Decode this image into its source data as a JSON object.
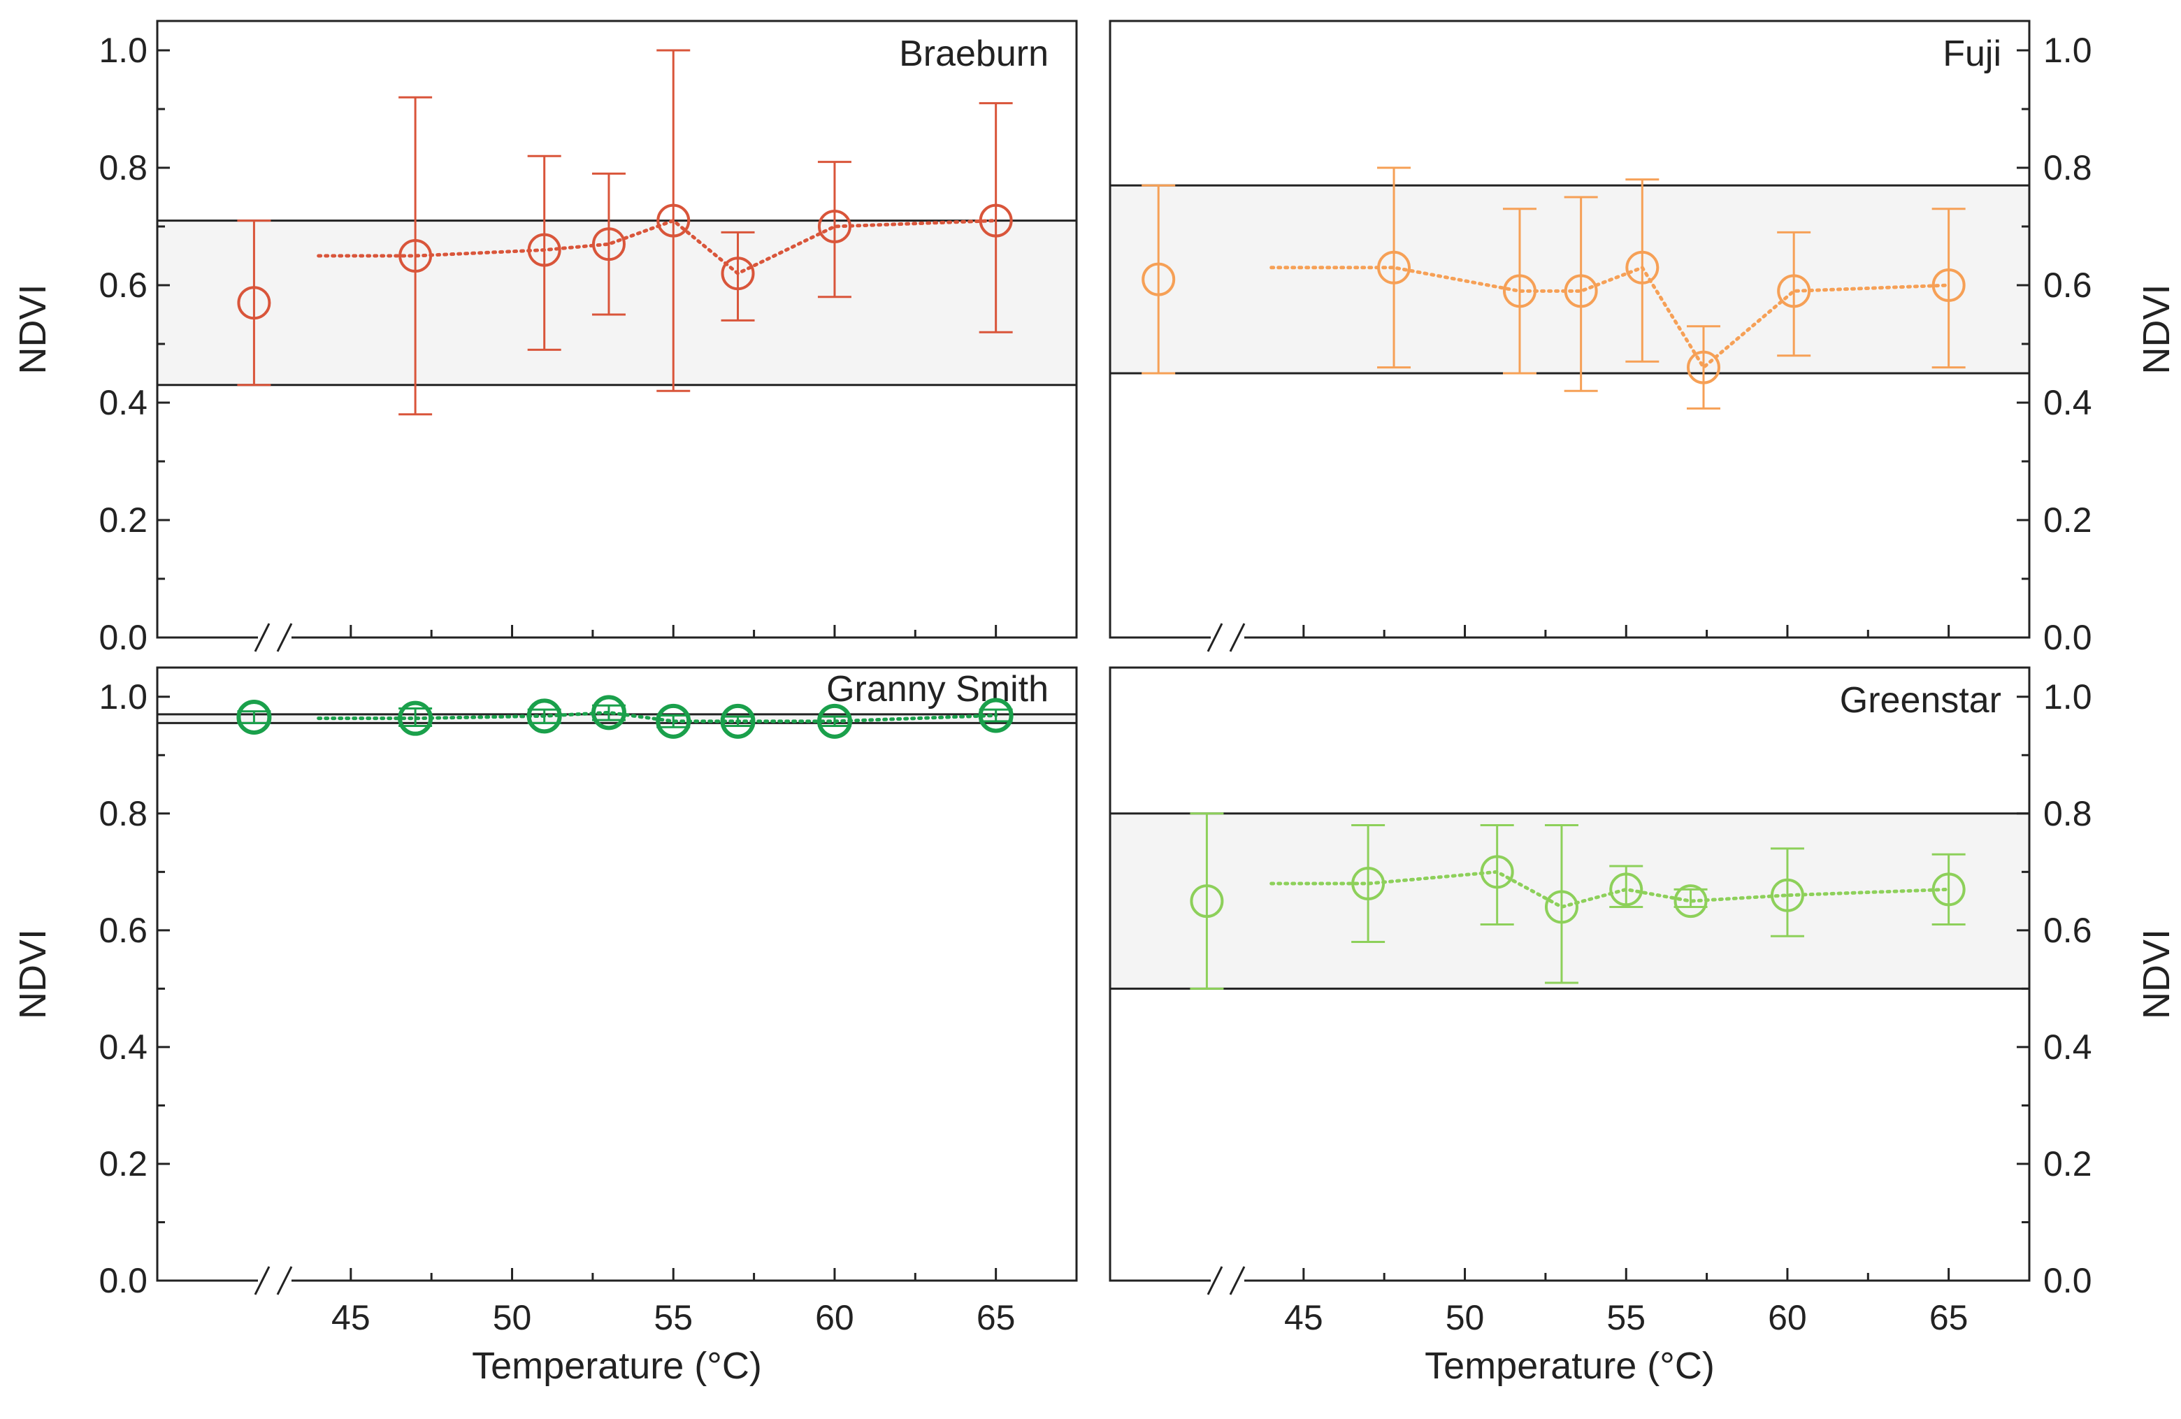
{
  "figure": {
    "shared_xlabel": "Temperature (°C)",
    "ylabel": "NDVI"
  },
  "chart_data": [
    {
      "type": "scatter",
      "title": "Braeburn",
      "xlabel": "",
      "ylabel": "NDVI",
      "xlim": [
        39,
        67.5
      ],
      "ylim": [
        0,
        1.05
      ],
      "xticks": [
        45,
        50,
        55,
        60,
        65
      ],
      "yticks": [
        0.0,
        0.2,
        0.4,
        0.6,
        0.8,
        1.0
      ],
      "ytick_labels": [
        "0.0",
        "0.2",
        "0.4",
        "0.6",
        "0.8",
        "1.0"
      ],
      "yaxis_side": "left",
      "show_xtick_labels": false,
      "axis_break": "//",
      "color": "#D9553A",
      "reference_band": [
        0.43,
        0.71
      ],
      "control_point": {
        "x": 42,
        "y": 0.57,
        "err_low": 0.43,
        "err_high": 0.71
      },
      "series": [
        {
          "name": "Braeburn",
          "x": [
            47,
            51,
            53,
            55,
            57,
            60,
            65
          ],
          "y": [
            0.65,
            0.66,
            0.67,
            0.71,
            0.62,
            0.7,
            0.71
          ],
          "err_low": [
            0.38,
            0.49,
            0.55,
            0.42,
            0.54,
            0.58,
            0.52
          ],
          "err_high": [
            0.92,
            0.82,
            0.79,
            1.0,
            0.69,
            0.81,
            0.91
          ]
        }
      ]
    },
    {
      "type": "scatter",
      "title": "Fuji",
      "xlabel": "",
      "ylabel": "NDVI",
      "xlim": [
        39,
        67.5
      ],
      "ylim": [
        0,
        1.05
      ],
      "xticks": [
        45,
        50,
        55,
        60,
        65
      ],
      "yticks": [
        0.0,
        0.2,
        0.4,
        0.6,
        0.8,
        1.0
      ],
      "ytick_labels": [
        "0.0",
        "0.2",
        "0.4",
        "0.6",
        "0.8",
        "1.0"
      ],
      "yaxis_side": "right",
      "show_xtick_labels": false,
      "axis_break": "//",
      "color": "#F6A056",
      "reference_band": [
        0.45,
        0.77
      ],
      "control_point": {
        "x": 40.5,
        "y": 0.61,
        "err_low": 0.45,
        "err_high": 0.77
      },
      "series": [
        {
          "name": "Fuji",
          "x": [
            47.8,
            51.7,
            53.6,
            55.5,
            57.4,
            60.2,
            65
          ],
          "y": [
            0.63,
            0.59,
            0.59,
            0.63,
            0.46,
            0.59,
            0.6
          ],
          "err_low": [
            0.46,
            0.45,
            0.42,
            0.47,
            0.39,
            0.48,
            0.46
          ],
          "err_high": [
            0.8,
            0.73,
            0.75,
            0.78,
            0.53,
            0.69,
            0.73
          ]
        }
      ]
    },
    {
      "type": "scatter",
      "title": "Granny Smith",
      "xlabel": "Temperature (°C)",
      "ylabel": "NDVI",
      "xlim": [
        39,
        67.5
      ],
      "ylim": [
        0,
        1.05
      ],
      "xticks": [
        45,
        50,
        55,
        60,
        65
      ],
      "xtick_labels": [
        "45",
        "50",
        "55",
        "60",
        "65"
      ],
      "yticks": [
        0.0,
        0.2,
        0.4,
        0.6,
        0.8,
        1.0
      ],
      "ytick_labels": [
        "0.0",
        "0.2",
        "0.4",
        "0.6",
        "0.8",
        "1.0"
      ],
      "yaxis_side": "left",
      "show_xtick_labels": true,
      "axis_break": "//",
      "color": "#1AA04B",
      "reference_band": [
        0.955,
        0.97
      ],
      "control_point": {
        "x": 42,
        "y": 0.965,
        "err_low": 0.955,
        "err_high": 0.975
      },
      "series": [
        {
          "name": "Granny Smith",
          "x": [
            47,
            51,
            53,
            55,
            57,
            60,
            65
          ],
          "y": [
            0.963,
            0.967,
            0.973,
            0.958,
            0.958,
            0.958,
            0.968
          ],
          "err_low": [
            0.95,
            0.955,
            0.96,
            0.948,
            0.95,
            0.95,
            0.958
          ],
          "err_high": [
            0.98,
            0.978,
            0.985,
            0.968,
            0.966,
            0.966,
            0.978
          ]
        }
      ]
    },
    {
      "type": "scatter",
      "title": "Greenstar",
      "xlabel": "Temperature (°C)",
      "ylabel": "NDVI",
      "xlim": [
        39,
        67.5
      ],
      "ylim": [
        0,
        1.05
      ],
      "xticks": [
        45,
        50,
        55,
        60,
        65
      ],
      "xtick_labels": [
        "45",
        "50",
        "55",
        "60",
        "65"
      ],
      "yticks": [
        0.0,
        0.2,
        0.4,
        0.6,
        0.8,
        1.0
      ],
      "ytick_labels": [
        "0.0",
        "0.2",
        "0.4",
        "0.6",
        "0.8",
        "1.0"
      ],
      "yaxis_side": "right",
      "show_xtick_labels": true,
      "axis_break": "//",
      "color": "#8DD05A",
      "reference_band": [
        0.5,
        0.8
      ],
      "control_point": {
        "x": 42,
        "y": 0.65,
        "err_low": 0.5,
        "err_high": 0.8
      },
      "series": [
        {
          "name": "Greenstar",
          "x": [
            47,
            51,
            53,
            55,
            57,
            60,
            65
          ],
          "y": [
            0.68,
            0.7,
            0.64,
            0.67,
            0.65,
            0.66,
            0.67
          ],
          "err_low": [
            0.58,
            0.61,
            0.51,
            0.64,
            0.64,
            0.59,
            0.61
          ],
          "err_high": [
            0.78,
            0.78,
            0.78,
            0.71,
            0.67,
            0.74,
            0.73
          ]
        }
      ]
    }
  ]
}
